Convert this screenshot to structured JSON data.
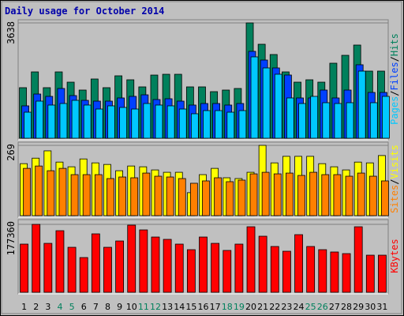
{
  "chart_data": {
    "type": "bar",
    "title": "Daily usage for October 2014",
    "categories": [
      "1",
      "2",
      "3",
      "4",
      "5",
      "6",
      "7",
      "8",
      "9",
      "10",
      "11",
      "12",
      "13",
      "14",
      "15",
      "16",
      "17",
      "18",
      "19",
      "20",
      "21",
      "22",
      "23",
      "24",
      "25",
      "26",
      "27",
      "28",
      "29",
      "30",
      "31"
    ],
    "highlighted_categories": [
      "4",
      "5",
      "11",
      "12",
      "18",
      "19",
      "25",
      "26"
    ],
    "category_color": "#000000",
    "highlight_color": "#00805c",
    "legend_separator": "/",
    "panels": [
      {
        "ylim": [
          0,
          3638
        ],
        "yticks": [
          3638
        ],
        "series": [
          {
            "name": "Hits",
            "color": "#00805c",
            "values": [
              1595,
              2093,
              1595,
              2093,
              1769,
              1520,
              1869,
              1595,
              1969,
              1844,
              1620,
              1993,
              2018,
              2018,
              1620,
              1620,
              1470,
              1520,
              1570,
              3638,
              2965,
              2641,
              2093,
              1769,
              1844,
              1769,
              2367,
              2616,
              2940,
              2118,
              2118
            ]
          },
          {
            "name": "Files",
            "color": "#0040ff",
            "values": [
              1022,
              1395,
              1321,
              1570,
              1346,
              1196,
              1171,
              1171,
              1271,
              1321,
              1370,
              1221,
              1246,
              1171,
              1047,
              1096,
              1096,
              1047,
              1096,
              2741,
              2467,
              2218,
              1994,
              1271,
              1271,
              1520,
              1271,
              1520,
              2318,
              1445,
              1445
            ]
          },
          {
            "name": "Pages",
            "color": "#00c8ff",
            "values": [
              822,
              1171,
              1047,
              1096,
              1196,
              1047,
              922,
              1022,
              972,
              922,
              1096,
              1047,
              1022,
              922,
              773,
              872,
              872,
              822,
              872,
              2567,
              2218,
              2019,
              1271,
              1096,
              1321,
              1121,
              1096,
              1121,
              2118,
              1121,
              1321
            ]
          }
        ]
      },
      {
        "ylim": [
          0,
          269
        ],
        "yticks": [
          269
        ],
        "series": [
          {
            "name": "Visits",
            "color": "#ffff00",
            "values": [
              199,
              220,
              248,
              205,
              187,
              217,
              202,
              196,
              172,
              190,
              187,
              175,
              166,
              166,
              88,
              157,
              181,
              145,
              142,
              166,
              269,
              202,
              227,
              227,
              227,
              199,
              187,
              175,
              205,
              202,
              230
            ]
          },
          {
            "name": "Sites",
            "color": "#ff8000",
            "values": [
              181,
              190,
              172,
              181,
              157,
              157,
              157,
              142,
              148,
              145,
              163,
              151,
              148,
              142,
              124,
              133,
              145,
              130,
              136,
              160,
              166,
              160,
              163,
              154,
              166,
              157,
              157,
              151,
              163,
              151,
              133
            ]
          }
        ]
      },
      {
        "ylim": [
          0,
          177360
        ],
        "yticks": [
          177360
        ],
        "series": [
          {
            "name": "KBytes",
            "color": "#ff0000",
            "values": [
              125800,
              177360,
              127800,
              160800,
              117500,
              90700,
              152600,
              117500,
              134000,
              175300,
              162900,
              144300,
              138200,
              125800,
              111300,
              144300,
              127800,
              109300,
              125800,
              171100,
              146400,
              119600,
              107200,
              150500,
              119600,
              111300,
              105200,
              101000,
              171100,
              96900,
              96900
            ]
          }
        ]
      }
    ]
  }
}
